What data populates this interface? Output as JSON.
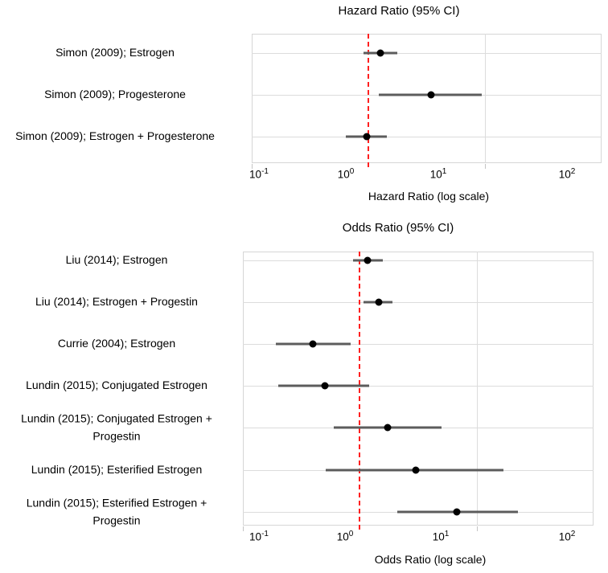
{
  "colors": {
    "reference_line": "#ff2020",
    "marker": "#000000",
    "ci_bar": "#5c5c5c",
    "gridline": "#dcdcdc",
    "text": "#000000",
    "background": "#ffffff"
  },
  "chart_data": [
    {
      "type": "scatter",
      "subtype": "forest-plot",
      "title": "Hazard Ratio (95% CI)",
      "xlabel": "Hazard Ratio (log scale)",
      "x_scale": "log",
      "xlim": [
        0.1,
        100
      ],
      "x_tick_labels": [
        "10^-1",
        "10^0",
        "10^1",
        "10^2"
      ],
      "x_tick_values": [
        0.1,
        1,
        10,
        100
      ],
      "reference_line_x": 1,
      "grid": true,
      "legend": "none",
      "rows": [
        {
          "label": "Simon (2009); Estrogen",
          "label_lines": [
            "Simon (2009); Estrogen"
          ],
          "estimate": 1.27,
          "ci_low": 0.91,
          "ci_high": 1.77
        },
        {
          "label": "Simon (2009); Progesterone",
          "label_lines": [
            "Simon (2009); Progesterone"
          ],
          "estimate": 3.45,
          "ci_low": 1.23,
          "ci_high": 9.4
        },
        {
          "label": "Simon (2009); Estrogen + Progesterone",
          "label_lines": [
            "Simon (2009); Estrogen + Progesterone"
          ],
          "estimate": 0.97,
          "ci_low": 0.64,
          "ci_high": 1.44
        }
      ]
    },
    {
      "type": "scatter",
      "subtype": "forest-plot",
      "title": "Odds Ratio (95% CI)",
      "xlabel": "Odds Ratio (log scale)",
      "x_scale": "log",
      "xlim": [
        0.1,
        100
      ],
      "x_tick_labels": [
        "10^-1",
        "10^0",
        "10^1",
        "10^2"
      ],
      "x_tick_values": [
        0.1,
        1,
        10,
        100
      ],
      "reference_line_x": 1,
      "grid": true,
      "legend": "none",
      "rows": [
        {
          "label": "Liu (2014); Estrogen",
          "label_lines": [
            "Liu (2014); Estrogen"
          ],
          "estimate": 1.17,
          "ci_low": 0.88,
          "ci_high": 1.58
        },
        {
          "label": "Liu (2014); Estrogen + Progestin",
          "label_lines": [
            "Liu (2014); Estrogen + Progestin"
          ],
          "estimate": 1.46,
          "ci_low": 1.07,
          "ci_high": 1.92
        },
        {
          "label": "Currie (2004); Estrogen",
          "label_lines": [
            "Currie (2004); Estrogen"
          ],
          "estimate": 0.4,
          "ci_low": 0.19,
          "ci_high": 0.84
        },
        {
          "label": "Lundin (2015); Conjugated Estrogen",
          "label_lines": [
            "Lundin (2015); Conjugated Estrogen"
          ],
          "estimate": 0.5,
          "ci_low": 0.2,
          "ci_high": 1.21
        },
        {
          "label": "Lundin (2015); Conjugated Estrogen + Progestin",
          "label_lines": [
            "Lundin (2015); Conjugated Estrogen +",
            "Progestin"
          ],
          "estimate": 1.72,
          "ci_low": 0.6,
          "ci_high": 4.97
        },
        {
          "label": "Lundin (2015); Esterified Estrogen",
          "label_lines": [
            "Lundin (2015); Esterified Estrogen"
          ],
          "estimate": 3.0,
          "ci_low": 0.51,
          "ci_high": 16.9
        },
        {
          "label": "Lundin (2015); Esterified Estrogen + Progestin",
          "label_lines": [
            "Lundin (2015); Esterified Estrogen +",
            "Progestin"
          ],
          "estimate": 6.8,
          "ci_low": 2.1,
          "ci_high": 22.5
        }
      ]
    }
  ]
}
